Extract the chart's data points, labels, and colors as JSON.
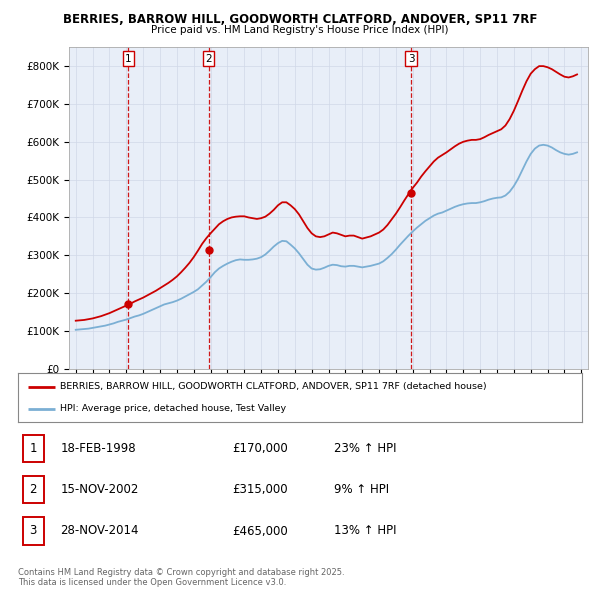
{
  "title": "BERRIES, BARROW HILL, GOODWORTH CLATFORD, ANDOVER, SP11 7RF",
  "subtitle": "Price paid vs. HM Land Registry's House Price Index (HPI)",
  "ylim": [
    0,
    850000
  ],
  "yticks": [
    0,
    100000,
    200000,
    300000,
    400000,
    500000,
    600000,
    700000,
    800000
  ],
  "ytick_labels": [
    "£0",
    "£100K",
    "£200K",
    "£300K",
    "£400K",
    "£500K",
    "£600K",
    "£700K",
    "£800K"
  ],
  "xlim_start": 1994.6,
  "xlim_end": 2025.4,
  "sale_color": "#cc0000",
  "hpi_color": "#7bafd4",
  "vline_color": "#cc0000",
  "grid_color": "#d0d8e8",
  "background_color": "#ffffff",
  "plot_bg_color": "#e8eef8",
  "sale_dates": [
    1998.13,
    2002.88,
    2014.91
  ],
  "sale_prices": [
    170000,
    315000,
    465000
  ],
  "sale_labels": [
    "1",
    "2",
    "3"
  ],
  "legend_line1": "BERRIES, BARROW HILL, GOODWORTH CLATFORD, ANDOVER, SP11 7RF (detached house)",
  "legend_line2": "HPI: Average price, detached house, Test Valley",
  "table_data": [
    [
      "1",
      "18-FEB-1998",
      "£170,000",
      "23% ↑ HPI"
    ],
    [
      "2",
      "15-NOV-2002",
      "£315,000",
      "9% ↑ HPI"
    ],
    [
      "3",
      "28-NOV-2014",
      "£465,000",
      "13% ↑ HPI"
    ]
  ],
  "footnote": "Contains HM Land Registry data © Crown copyright and database right 2025.\nThis data is licensed under the Open Government Licence v3.0.",
  "hpi_data_x": [
    1995.0,
    1995.25,
    1995.5,
    1995.75,
    1996.0,
    1996.25,
    1996.5,
    1996.75,
    1997.0,
    1997.25,
    1997.5,
    1997.75,
    1998.0,
    1998.25,
    1998.5,
    1998.75,
    1999.0,
    1999.25,
    1999.5,
    1999.75,
    2000.0,
    2000.25,
    2000.5,
    2000.75,
    2001.0,
    2001.25,
    2001.5,
    2001.75,
    2002.0,
    2002.25,
    2002.5,
    2002.75,
    2003.0,
    2003.25,
    2003.5,
    2003.75,
    2004.0,
    2004.25,
    2004.5,
    2004.75,
    2005.0,
    2005.25,
    2005.5,
    2005.75,
    2006.0,
    2006.25,
    2006.5,
    2006.75,
    2007.0,
    2007.25,
    2007.5,
    2007.75,
    2008.0,
    2008.25,
    2008.5,
    2008.75,
    2009.0,
    2009.25,
    2009.5,
    2009.75,
    2010.0,
    2010.25,
    2010.5,
    2010.75,
    2011.0,
    2011.25,
    2011.5,
    2011.75,
    2012.0,
    2012.25,
    2012.5,
    2012.75,
    2013.0,
    2013.25,
    2013.5,
    2013.75,
    2014.0,
    2014.25,
    2014.5,
    2014.75,
    2015.0,
    2015.25,
    2015.5,
    2015.75,
    2016.0,
    2016.25,
    2016.5,
    2016.75,
    2017.0,
    2017.25,
    2017.5,
    2017.75,
    2018.0,
    2018.25,
    2018.5,
    2018.75,
    2019.0,
    2019.25,
    2019.5,
    2019.75,
    2020.0,
    2020.25,
    2020.5,
    2020.75,
    2021.0,
    2021.25,
    2021.5,
    2021.75,
    2022.0,
    2022.25,
    2022.5,
    2022.75,
    2023.0,
    2023.25,
    2023.5,
    2023.75,
    2024.0,
    2024.25,
    2024.5,
    2024.75
  ],
  "hpi_data_y": [
    103000,
    104000,
    105000,
    106000,
    108000,
    110000,
    112000,
    114000,
    117000,
    120000,
    124000,
    127000,
    130000,
    134000,
    138000,
    141000,
    145000,
    150000,
    155000,
    160000,
    165000,
    170000,
    173000,
    176000,
    180000,
    185000,
    191000,
    197000,
    203000,
    210000,
    220000,
    230000,
    242000,
    255000,
    265000,
    272000,
    278000,
    283000,
    287000,
    289000,
    288000,
    288000,
    289000,
    291000,
    295000,
    302000,
    312000,
    323000,
    332000,
    338000,
    337000,
    328000,
    318000,
    305000,
    290000,
    275000,
    265000,
    262000,
    263000,
    267000,
    272000,
    275000,
    274000,
    271000,
    270000,
    272000,
    272000,
    270000,
    268000,
    270000,
    272000,
    275000,
    278000,
    284000,
    293000,
    303000,
    315000,
    328000,
    340000,
    352000,
    363000,
    373000,
    382000,
    391000,
    398000,
    405000,
    410000,
    413000,
    418000,
    423000,
    428000,
    432000,
    435000,
    437000,
    438000,
    438000,
    440000,
    443000,
    447000,
    450000,
    452000,
    453000,
    458000,
    468000,
    483000,
    502000,
    525000,
    548000,
    568000,
    582000,
    590000,
    592000,
    590000,
    585000,
    578000,
    572000,
    568000,
    566000,
    568000,
    572000
  ],
  "sale_line_y": [
    127000,
    128000,
    129000,
    131000,
    133000,
    136000,
    139000,
    143000,
    147000,
    152000,
    157000,
    162000,
    167000,
    172000,
    178000,
    183000,
    188000,
    194000,
    200000,
    206000,
    213000,
    220000,
    227000,
    235000,
    244000,
    255000,
    267000,
    280000,
    295000,
    312000,
    330000,
    345000,
    358000,
    370000,
    382000,
    390000,
    396000,
    400000,
    402000,
    403000,
    403000,
    400000,
    398000,
    396000,
    398000,
    402000,
    410000,
    420000,
    432000,
    440000,
    440000,
    432000,
    422000,
    408000,
    390000,
    372000,
    358000,
    350000,
    348000,
    350000,
    355000,
    360000,
    358000,
    354000,
    350000,
    352000,
    352000,
    348000,
    344000,
    347000,
    350000,
    355000,
    360000,
    368000,
    380000,
    395000,
    410000,
    427000,
    445000,
    462000,
    478000,
    492000,
    508000,
    522000,
    535000,
    548000,
    558000,
    565000,
    572000,
    580000,
    588000,
    595000,
    600000,
    603000,
    605000,
    605000,
    607000,
    612000,
    618000,
    623000,
    628000,
    633000,
    643000,
    660000,
    682000,
    708000,
    735000,
    760000,
    780000,
    792000,
    800000,
    800000,
    797000,
    792000,
    785000,
    778000,
    772000,
    770000,
    773000,
    778000
  ]
}
